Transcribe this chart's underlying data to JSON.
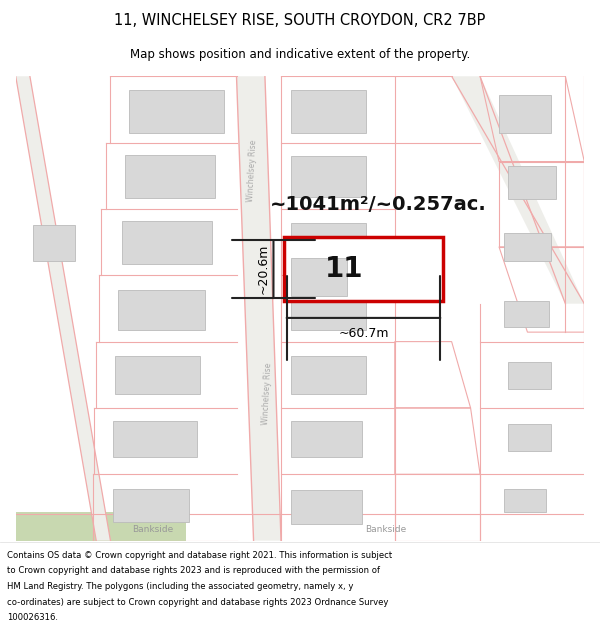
{
  "title_line1": "11, WINCHELSEY RISE, SOUTH CROYDON, CR2 7BP",
  "title_line2": "Map shows position and indicative extent of the property.",
  "area_label": "~1041m²/~0.257ac.",
  "number_label": "11",
  "width_label": "~60.7m",
  "height_label": "~20.6m",
  "street_label_upper": "Winchelsey Rise",
  "street_label_lower": "Winchelsey Rise",
  "bankside_left": "Bankside",
  "bankside_right": "Bankside",
  "bg_white": "#ffffff",
  "building_fill": "#d8d8d8",
  "building_edge": "#bbbbbb",
  "road_fill": "#eeeeea",
  "plot_line": "#f0aaaa",
  "highlight_red": "#cc0000",
  "arrow_color": "#222222",
  "green_fill": "#c8d8b0",
  "footer_lines": [
    "Contains OS data © Crown copyright and database right 2021. This information is subject",
    "to Crown copyright and database rights 2023 and is reproduced with the permission of",
    "HM Land Registry. The polygons (including the associated geometry, namely x, y",
    "co-ordinates) are subject to Crown copyright and database rights 2023 Ordnance Survey",
    "100026316."
  ]
}
